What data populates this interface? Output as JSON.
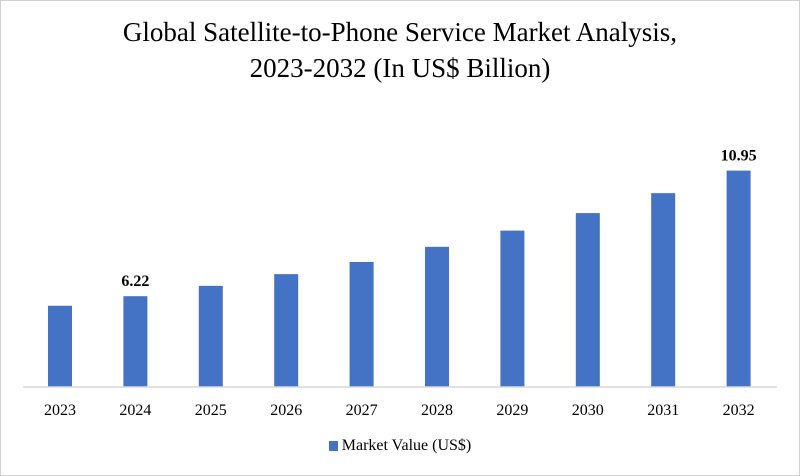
{
  "chart_data": {
    "type": "bar",
    "title_line1": "Global Satellite-to-Phone Service Market Analysis,",
    "title_line2": "2023-2032 (In US$ Billion)",
    "xlabel": "",
    "ylabel": "",
    "categories": [
      "2023",
      "2024",
      "2025",
      "2026",
      "2027",
      "2028",
      "2029",
      "2030",
      "2031",
      "2032"
    ],
    "series": [
      {
        "name": "Market Value (US$)",
        "color": "#4472c4",
        "values": [
          5.86,
          6.22,
          6.61,
          7.05,
          7.51,
          8.08,
          8.69,
          9.35,
          10.1,
          10.95
        ]
      }
    ],
    "data_labels": [
      {
        "index": 1,
        "text": "6.22"
      },
      {
        "index": 9,
        "text": "10.95"
      }
    ],
    "ylim": [
      2.8,
      11.5
    ],
    "y_axis_visible": false,
    "grid": false,
    "legend_position": "bottom",
    "axis_color": "#d9d9d9"
  }
}
